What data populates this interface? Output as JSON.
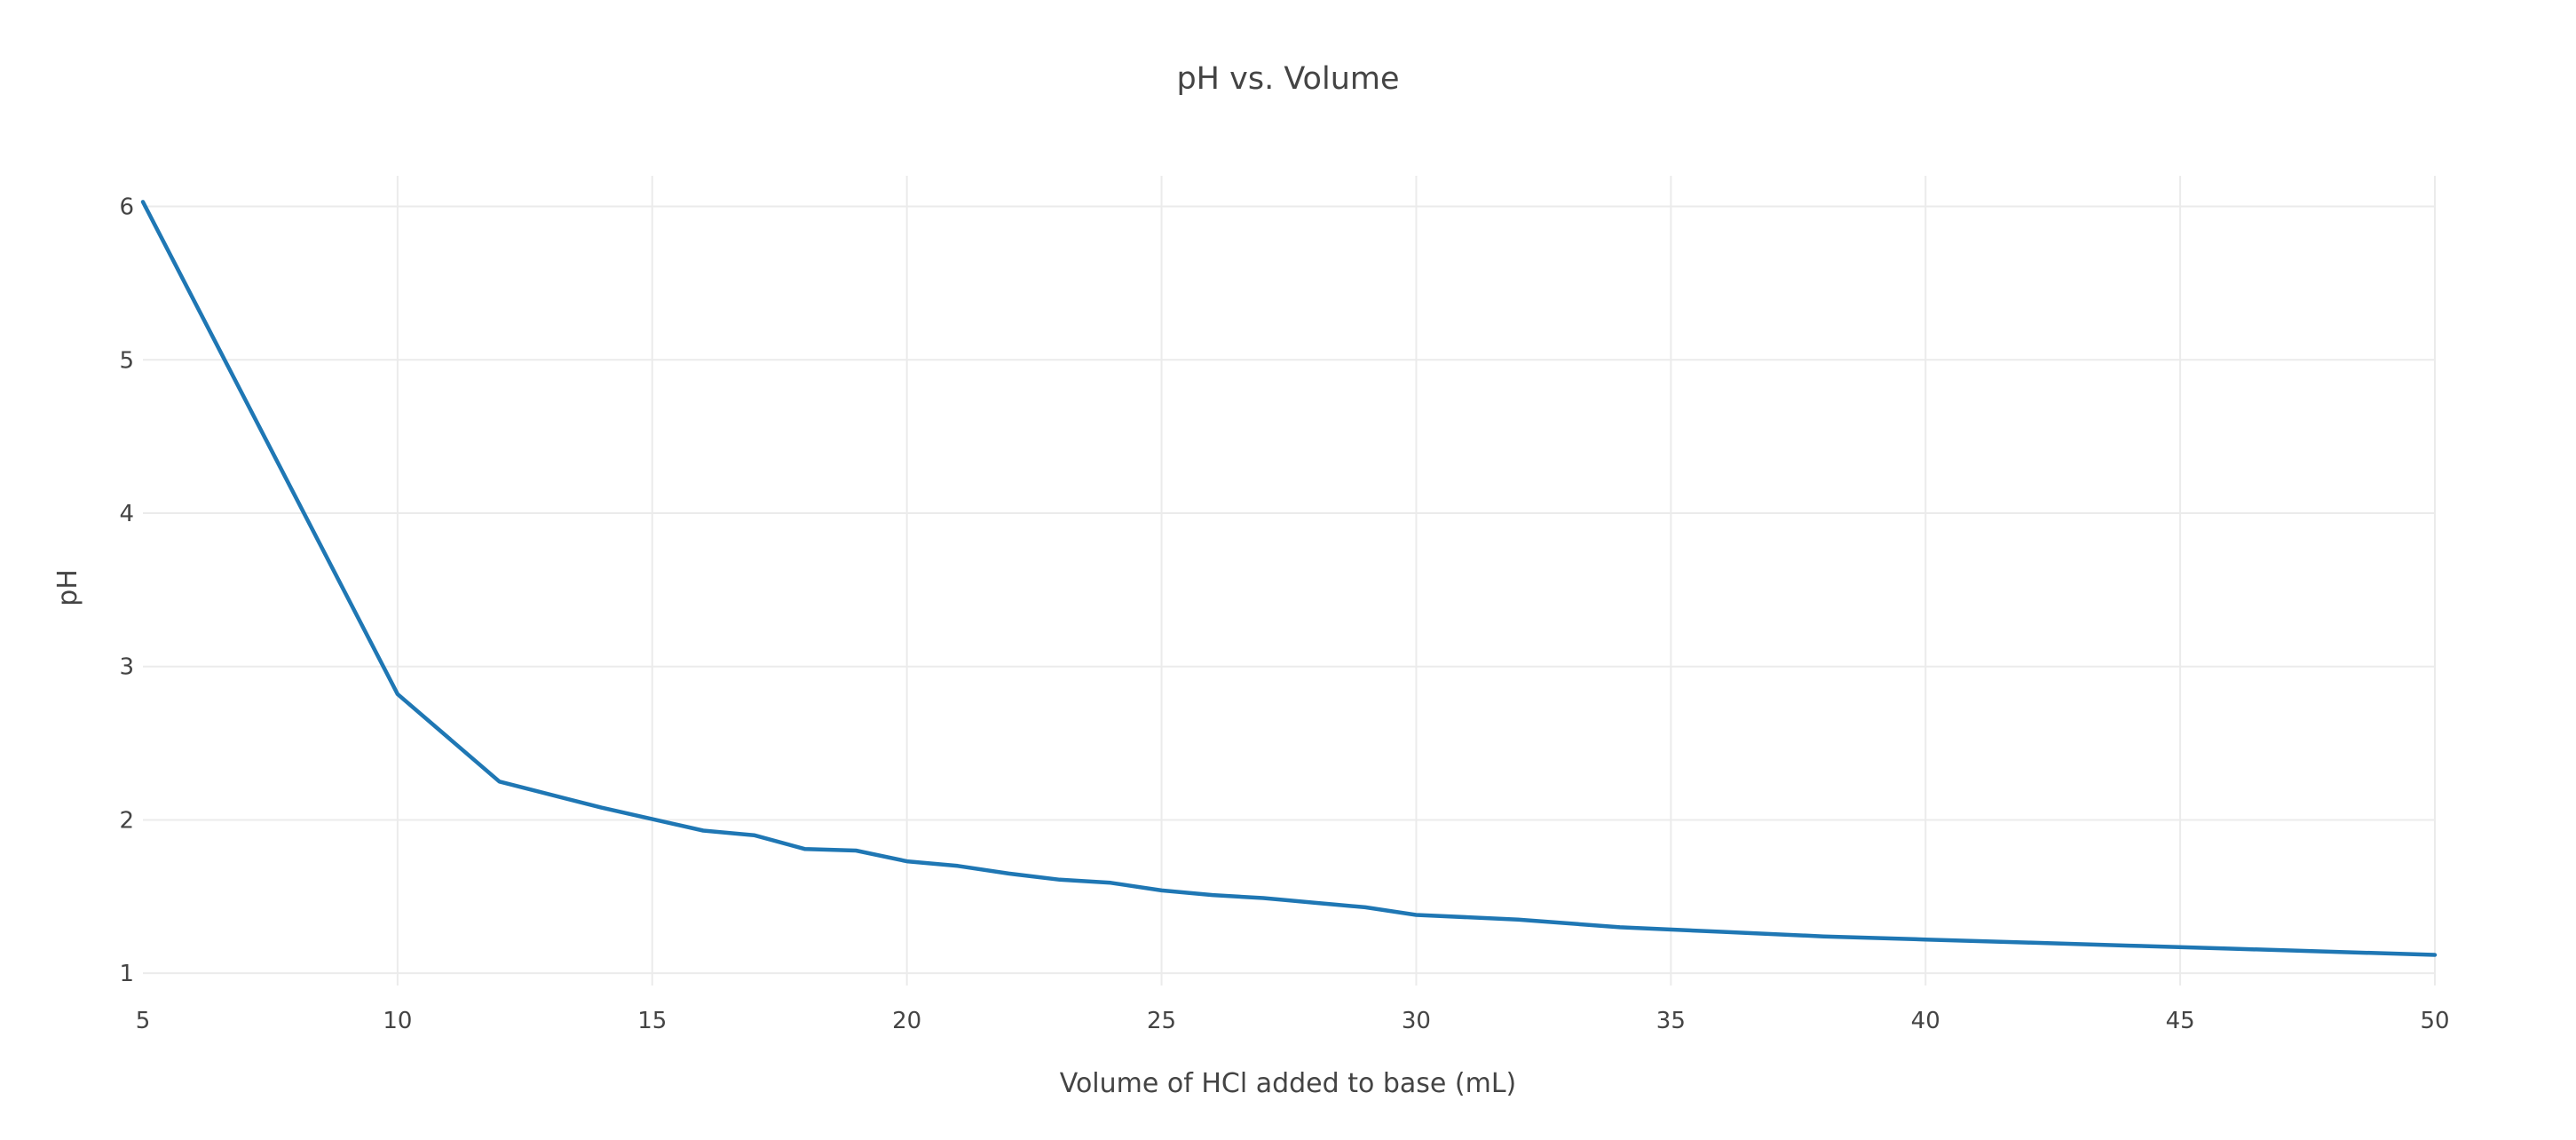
{
  "chart_data": {
    "type": "line",
    "title": "pH vs. Volume",
    "xlabel": "Volume of HCl added to base (mL)",
    "ylabel": "pH",
    "xlim": [
      5,
      50
    ],
    "ylim": [
      0.92,
      6.2
    ],
    "x_ticks": [
      5,
      10,
      15,
      20,
      25,
      30,
      35,
      40,
      45,
      50
    ],
    "y_ticks": [
      1,
      2,
      3,
      4,
      5,
      6
    ],
    "grid": true,
    "legend": "none",
    "colors": {
      "series": "#1f77b4",
      "grid": "#ebebeb",
      "text": "#444444"
    },
    "series": [
      {
        "x": [
          5,
          10,
          12,
          14,
          16,
          17,
          18,
          19,
          20,
          21,
          22,
          23,
          24,
          25,
          26,
          27,
          28,
          29,
          30,
          32,
          34,
          36,
          38,
          40,
          42,
          44,
          46,
          48,
          50
        ],
        "y": [
          6.03,
          2.82,
          2.25,
          2.08,
          1.93,
          1.9,
          1.81,
          1.8,
          1.73,
          1.7,
          1.65,
          1.61,
          1.59,
          1.54,
          1.51,
          1.49,
          1.46,
          1.43,
          1.38,
          1.35,
          1.3,
          1.27,
          1.24,
          1.22,
          1.2,
          1.18,
          1.16,
          1.14,
          1.12
        ]
      }
    ]
  }
}
